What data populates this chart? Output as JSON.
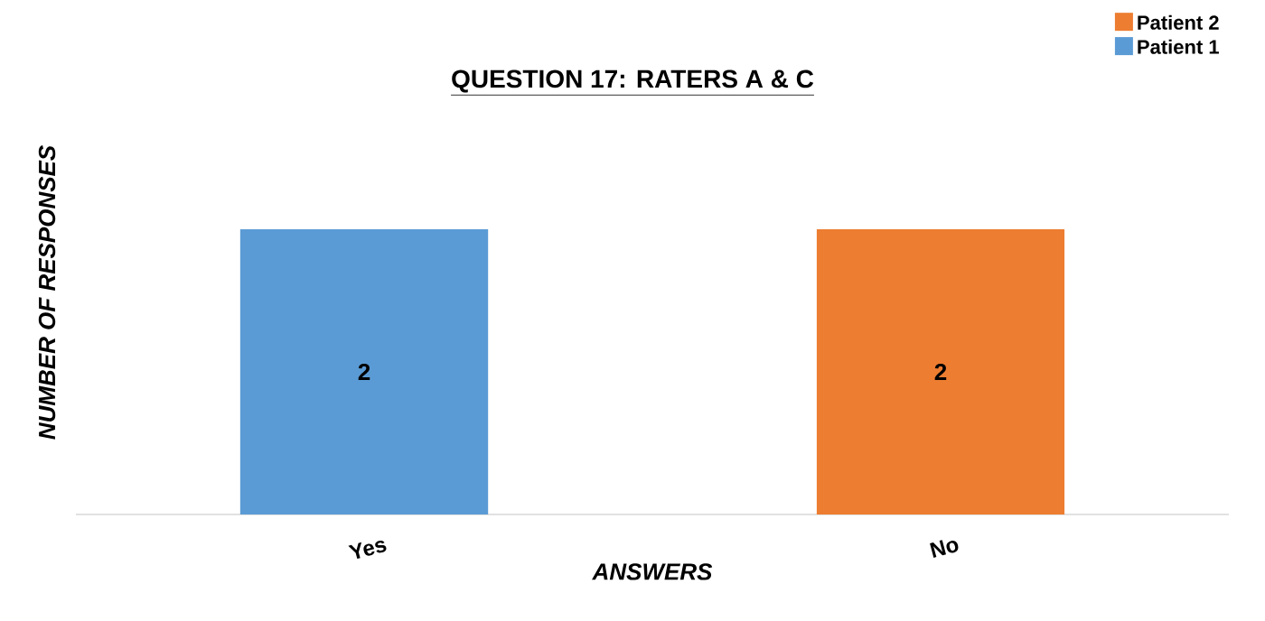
{
  "chart_data": {
    "type": "bar",
    "title": "QUESTION 17: RATERS A & C",
    "xlabel": "ANSWERS",
    "ylabel": "NUMBER OF RESPONSES",
    "categories": [
      "Yes",
      "No"
    ],
    "series": [
      {
        "name": "Patient 1",
        "color": "#5b9bd5",
        "values": [
          2,
          null
        ]
      },
      {
        "name": "Patient 2",
        "color": "#ed7d31",
        "values": [
          null,
          2
        ]
      }
    ],
    "tick_labels": "x",
    "data_labels": true,
    "legend": "top right",
    "grid": false
  }
}
